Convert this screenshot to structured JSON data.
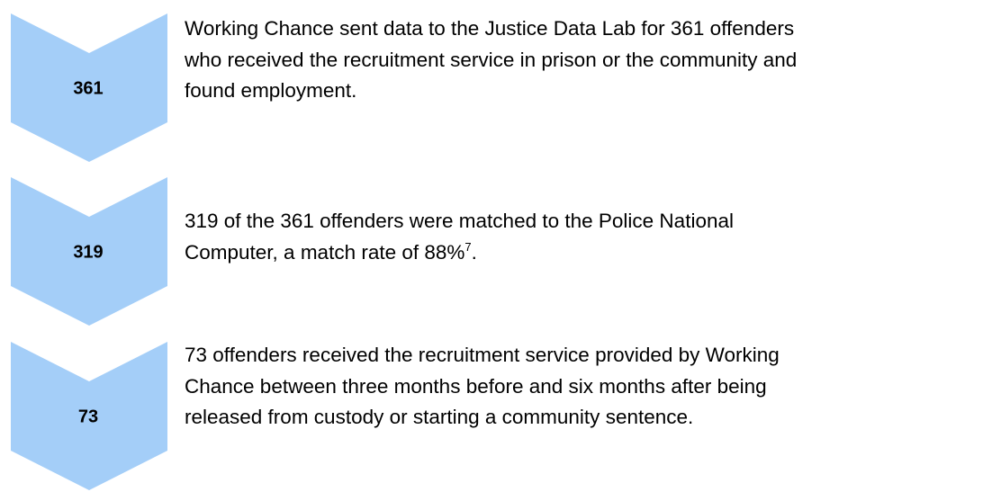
{
  "steps": [
    {
      "number": "361",
      "lines": [
        "Working Chance sent data to the Justice Data Lab for 361 offenders",
        "who received the recruitment service in prison or the community and",
        "found employment."
      ]
    },
    {
      "number": "319",
      "lines": [
        "319 of the 361 offenders were matched to the Police National",
        {
          "text": "Computer, a match rate of 88%",
          "sup": "7",
          "after": "."
        }
      ]
    },
    {
      "number": "73",
      "lines": [
        "73 offenders received the recruitment service provided by Working",
        "Chance between three months before and six months after being",
        "released from custody or starting a community sentence."
      ]
    }
  ]
}
